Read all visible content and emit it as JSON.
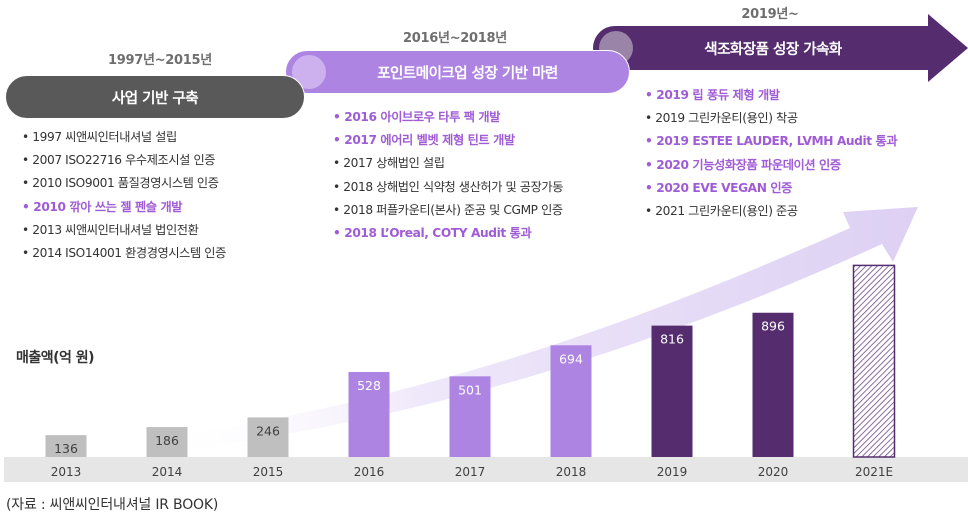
{
  "colors": {
    "phase1": "#595959",
    "phase1_bar": "#bfbfbf",
    "phase2": "#ae84e3",
    "phase2_knob": "#cdb1ef",
    "phase3": "#552d6e",
    "phase3_knob": "#9a84a8",
    "highlight_text": "#a05cd6",
    "baseline_band": "#e6e6e6",
    "growth_arrow": "#ddd0f3"
  },
  "phases": [
    {
      "period": "1997년~2015년",
      "title": "사업 기반 구축",
      "items": [
        {
          "text": "1997 씨앤씨인터내셔널 설립",
          "highlight": false
        },
        {
          "text": "2007 ISO22716 우수제조시설 인증",
          "highlight": false
        },
        {
          "text": "2010 ISO9001 품질경영시스템 인증",
          "highlight": false
        },
        {
          "text": "2010 깎아 쓰는 젤 펜슬 개발",
          "highlight": true
        },
        {
          "text": "2013 씨앤씨인터내셔널 법인전환",
          "highlight": false
        },
        {
          "text": "2014 ISO14001 환경경영시스템 인증",
          "highlight": false
        }
      ]
    },
    {
      "period": "2016년~2018년",
      "title": "포인트메이크업 성장 기반 마련",
      "items": [
        {
          "text": "2016 아이브로우 타투 팩 개발",
          "highlight": true
        },
        {
          "text": "2017 에어리 벨벳 제형 틴트 개발",
          "highlight": true
        },
        {
          "text": "2017 상해법인 설립",
          "highlight": false
        },
        {
          "text": "2018 상해법인 식약청 생산허가 및 공장가동",
          "highlight": false
        },
        {
          "text": "2018 퍼플카운티(본사) 준공 및 CGMP 인증",
          "highlight": false
        },
        {
          "text": "2018 L’Oreal, COTY Audit 통과",
          "highlight": true
        }
      ]
    },
    {
      "period": "2019년~",
      "title": "색조화장품 성장 가속화",
      "items": [
        {
          "text": "2019 립 퐁듀 제형 개발",
          "highlight": true
        },
        {
          "text": "2019 그린카운티(용인) 착공",
          "highlight": false
        },
        {
          "text": "2019 ESTEE LAUDER, LVMH Audit 통과",
          "highlight": true
        },
        {
          "text": "2020 기능성화장품 파운데이션 인증",
          "highlight": true
        },
        {
          "text": "2020 EVE VEGAN 인증",
          "highlight": true
        },
        {
          "text": "2021 그린카운티(용인) 준공",
          "highlight": false
        }
      ]
    }
  ],
  "chart_data": {
    "type": "bar",
    "ylabel": "매출액(억 원)",
    "categories": [
      "2013",
      "2014",
      "2015",
      "2016",
      "2017",
      "2018",
      "2019",
      "2020",
      "2021E"
    ],
    "values": [
      136,
      186,
      246,
      528,
      501,
      694,
      816,
      896,
      null
    ],
    "labels": [
      "136",
      "186",
      "246",
      "528",
      "501",
      "694",
      "816",
      "896",
      ""
    ],
    "estimated_values": [
      null,
      null,
      null,
      null,
      null,
      null,
      null,
      null,
      1190
    ],
    "phase_of_bar": [
      1,
      1,
      1,
      2,
      2,
      2,
      3,
      3,
      3
    ],
    "hatched": [
      false,
      false,
      false,
      false,
      false,
      false,
      false,
      false,
      true
    ],
    "ylim": [
      0,
      1300
    ],
    "grid": false,
    "legend": "none"
  },
  "source": "(자료 : 씨앤씨인터내셔널 IR BOOK)"
}
